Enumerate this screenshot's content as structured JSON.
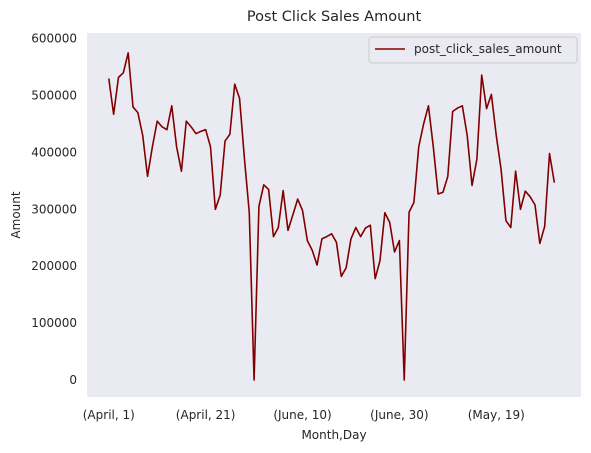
{
  "chart_data": {
    "type": "line",
    "title": "Post Click Sales Amount",
    "xlabel": "Month,Day",
    "ylabel": "Amount",
    "ylim": [
      -30000,
      610000
    ],
    "yticks": [
      0,
      100000,
      200000,
      300000,
      400000,
      500000,
      600000
    ],
    "ytick_labels": [
      "0",
      "100000",
      "200000",
      "300000",
      "400000",
      "500000",
      "600000"
    ],
    "xticks": [
      0,
      20,
      40,
      60,
      80
    ],
    "xtick_labels": [
      "(April, 1)",
      "(April, 21)",
      "(June, 10)",
      "(June, 30)",
      "(May, 19)"
    ],
    "xlim": [
      -4.5,
      97.5
    ],
    "grid": false,
    "legend": "upper-right",
    "colors": {
      "line": "#800000",
      "plot_bg": "#eaeaf2"
    },
    "series": [
      {
        "name": "post_click_sales_amount",
        "values": [
          530000,
          467000,
          532000,
          540000,
          575000,
          480000,
          470000,
          430000,
          358000,
          410000,
          455000,
          445000,
          440000,
          482000,
          410000,
          367000,
          455000,
          445000,
          433000,
          437000,
          440000,
          410000,
          300000,
          325000,
          420000,
          432000,
          520000,
          495000,
          390000,
          295000,
          0,
          305000,
          343000,
          335000,
          252000,
          268000,
          333000,
          263000,
          290000,
          318000,
          298000,
          245000,
          228000,
          202000,
          248000,
          252000,
          257000,
          242000,
          182000,
          197000,
          248000,
          268000,
          252000,
          267000,
          272000,
          178000,
          210000,
          294000,
          277000,
          225000,
          245000,
          0,
          295000,
          312000,
          410000,
          450000,
          482000,
          410000,
          327000,
          330000,
          358000,
          472000,
          478000,
          482000,
          430000,
          342000,
          388000,
          536000,
          477000,
          502000,
          430000,
          370000,
          280000,
          268000,
          367000,
          300000,
          332000,
          322000,
          308000,
          240000,
          270000,
          398000,
          347000
        ]
      }
    ]
  }
}
